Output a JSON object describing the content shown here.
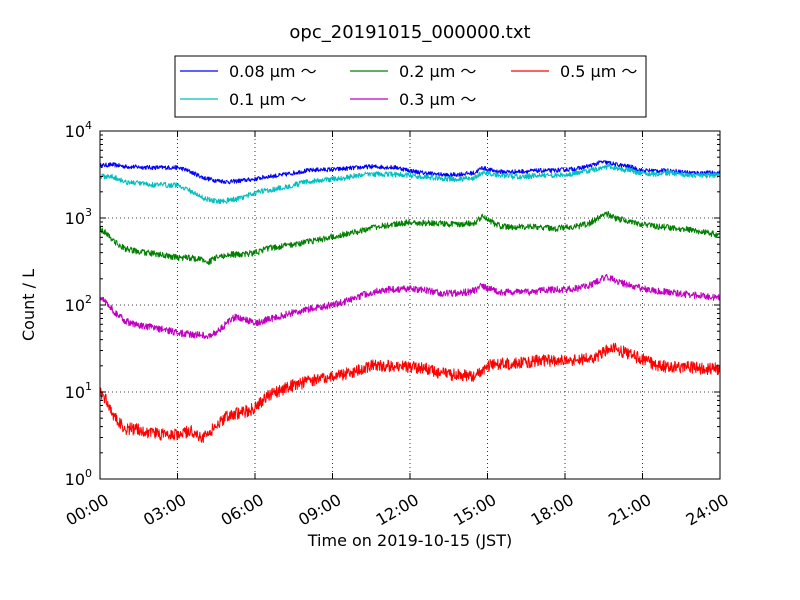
{
  "chart_data": {
    "type": "line",
    "title": "opc_20191015_000000.txt",
    "xlabel": "Time on 2019-10-15 (JST)",
    "ylabel": "Count / L",
    "x_unit": "hours",
    "xlim": [
      0,
      24
    ],
    "ylim": [
      1,
      10000
    ],
    "yscale": "log",
    "grid": true,
    "legend_position": "top, outside plot",
    "x_tick_values": [
      0,
      3,
      6,
      9,
      12,
      15,
      18,
      21,
      24
    ],
    "x_tick_labels": [
      "00:00",
      "03:00",
      "06:00",
      "09:00",
      "12:00",
      "15:00",
      "18:00",
      "21:00",
      "24:00"
    ],
    "y_tick_values": [
      1,
      10,
      100,
      1000,
      10000
    ],
    "y_tick_labels": [
      {
        "base": "10",
        "exp": "0"
      },
      {
        "base": "10",
        "exp": "1"
      },
      {
        "base": "10",
        "exp": "2"
      },
      {
        "base": "10",
        "exp": "3"
      },
      {
        "base": "10",
        "exp": "4"
      }
    ],
    "series": [
      {
        "name": "0.08 μm ～",
        "color": "#0000ff",
        "x": [
          0,
          0.5,
          1,
          1.5,
          2,
          2.5,
          3,
          3.3,
          3.7,
          4,
          4.5,
          5,
          5.5,
          6,
          6.5,
          7,
          7.5,
          8,
          8.5,
          9,
          9.5,
          10,
          10.5,
          11,
          11.5,
          12,
          12.5,
          13,
          13.5,
          14,
          14.5,
          14.8,
          15,
          15.5,
          16,
          16.5,
          17,
          17.5,
          18,
          18.5,
          19,
          19.4,
          19.7,
          20,
          20.5,
          21,
          21.5,
          22,
          22.5,
          23,
          23.5,
          24
        ],
        "y": [
          4000,
          4100,
          3900,
          3850,
          3800,
          3800,
          3800,
          3600,
          3200,
          2900,
          2700,
          2600,
          2700,
          2800,
          3000,
          3100,
          3300,
          3500,
          3600,
          3600,
          3700,
          3800,
          3900,
          3850,
          3800,
          3500,
          3300,
          3200,
          3100,
          3200,
          3300,
          3800,
          3600,
          3400,
          3400,
          3450,
          3500,
          3500,
          3600,
          3700,
          4000,
          4400,
          4300,
          4100,
          3900,
          3500,
          3500,
          3500,
          3400,
          3300,
          3300,
          3300
        ]
      },
      {
        "name": "0.1 μm ～",
        "color": "#00bfbf",
        "x": [
          0,
          0.5,
          1,
          1.5,
          2,
          2.5,
          3,
          3.3,
          3.7,
          4,
          4.5,
          5,
          5.5,
          6,
          6.5,
          7,
          7.5,
          8,
          8.5,
          9,
          9.5,
          10,
          10.5,
          11,
          11.5,
          12,
          12.5,
          13,
          13.5,
          14,
          14.5,
          14.8,
          15,
          15.5,
          16,
          16.5,
          17,
          17.5,
          18,
          18.5,
          19,
          19.4,
          19.7,
          20,
          20.5,
          21,
          21.5,
          22,
          22.5,
          23,
          23.5,
          24
        ],
        "y": [
          3000,
          3000,
          2600,
          2500,
          2400,
          2400,
          2400,
          2200,
          1900,
          1700,
          1550,
          1600,
          1700,
          1950,
          2100,
          2200,
          2400,
          2600,
          2700,
          2800,
          2900,
          3100,
          3200,
          3200,
          3150,
          3100,
          2950,
          2900,
          2800,
          2800,
          2900,
          3300,
          3200,
          3100,
          3000,
          3000,
          3100,
          3100,
          3100,
          3300,
          3500,
          3800,
          3900,
          3700,
          3500,
          3300,
          3200,
          3300,
          3200,
          3100,
          3100,
          3100
        ]
      },
      {
        "name": "0.2 μm ～",
        "color": "#008000",
        "x": [
          0,
          0.3,
          0.6,
          1,
          1.5,
          2,
          2.5,
          3,
          3.5,
          4,
          4.2,
          4.5,
          5,
          5.5,
          6,
          6.5,
          7,
          7.5,
          8,
          8.5,
          9,
          9.5,
          10,
          10.5,
          11,
          11.5,
          12,
          12.5,
          13,
          13.5,
          14,
          14.5,
          14.8,
          15,
          15.5,
          16,
          16.5,
          17,
          17.5,
          18,
          18.5,
          19,
          19.4,
          19.7,
          20,
          20.5,
          21,
          21.5,
          22,
          22.5,
          23,
          23.5,
          24
        ],
        "y": [
          750,
          650,
          520,
          440,
          410,
          390,
          370,
          350,
          350,
          330,
          310,
          350,
          380,
          380,
          400,
          450,
          470,
          500,
          530,
          560,
          620,
          650,
          700,
          780,
          820,
          850,
          900,
          880,
          870,
          850,
          850,
          880,
          1050,
          950,
          800,
          780,
          800,
          790,
          750,
          780,
          800,
          880,
          1050,
          1100,
          980,
          920,
          850,
          800,
          780,
          750,
          720,
          680,
          630
        ]
      },
      {
        "name": "0.3 μm ～",
        "color": "#bf00bf",
        "x": [
          0,
          0.3,
          0.6,
          1,
          1.5,
          2,
          2.5,
          3,
          3.5,
          4,
          4.2,
          4.5,
          4.8,
          5,
          5.2,
          5.5,
          6,
          6.5,
          7,
          7.5,
          8,
          8.5,
          9,
          9.5,
          10,
          10.5,
          11,
          11.5,
          12,
          12.5,
          13,
          13.5,
          14,
          14.5,
          14.8,
          15,
          15.5,
          16,
          16.5,
          17,
          17.5,
          18,
          18.5,
          19,
          19.4,
          19.7,
          20,
          20.5,
          21,
          21.5,
          22,
          22.5,
          23,
          23.5,
          24
        ],
        "y": [
          120,
          105,
          80,
          65,
          58,
          55,
          52,
          48,
          46,
          45,
          44,
          48,
          58,
          65,
          72,
          70,
          62,
          68,
          75,
          82,
          88,
          95,
          100,
          110,
          125,
          140,
          150,
          150,
          155,
          150,
          140,
          135,
          138,
          145,
          170,
          155,
          140,
          140,
          140,
          145,
          150,
          150,
          155,
          170,
          200,
          210,
          185,
          170,
          155,
          145,
          140,
          135,
          130,
          125,
          120
        ]
      },
      {
        "name": "0.5 μm ～",
        "color": "#ff0000",
        "x": [
          0,
          0.2,
          0.4,
          0.6,
          0.8,
          1,
          1.5,
          2,
          2.5,
          3,
          3.5,
          3.8,
          4,
          4.2,
          4.5,
          4.8,
          5,
          5.5,
          6,
          6.3,
          6.6,
          7,
          7.5,
          8,
          8.5,
          9,
          9.5,
          10,
          10.5,
          11,
          11.5,
          12,
          12.5,
          13,
          13.5,
          14,
          14.5,
          14.8,
          15,
          15.5,
          16,
          16.5,
          17,
          17.5,
          18,
          18.5,
          19,
          19.4,
          19.7,
          20,
          20.5,
          21,
          21.5,
          22,
          22.5,
          23,
          23.5,
          24
        ],
        "y": [
          10,
          8.5,
          6.5,
          5,
          4.2,
          3.8,
          3.7,
          3.4,
          3.2,
          3.2,
          3.6,
          3.2,
          3.0,
          3.4,
          4.0,
          5.0,
          5.5,
          5.8,
          6.5,
          8,
          9.5,
          10.5,
          12,
          13,
          14,
          15,
          16,
          18,
          20,
          20,
          20,
          19.5,
          19,
          17,
          16,
          15.5,
          15,
          17,
          20,
          21,
          21,
          22,
          23,
          23,
          23,
          23.5,
          24,
          27,
          33,
          31,
          27,
          24,
          20,
          19.5,
          19.5,
          19,
          18.5,
          18.5
        ]
      }
    ]
  }
}
